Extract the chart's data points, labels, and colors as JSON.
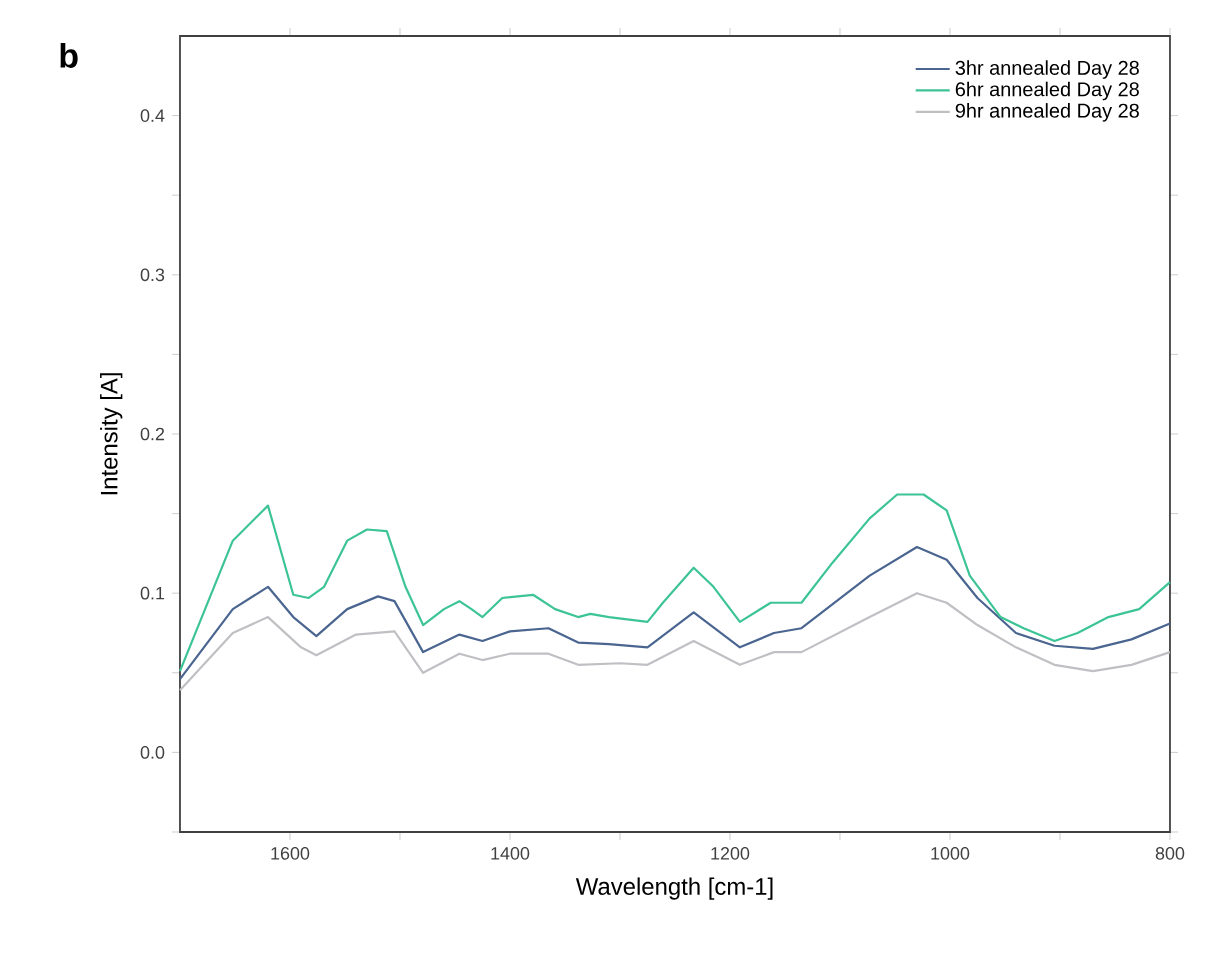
{
  "chart_data": {
    "type": "line",
    "xlabel": "Wavelength [cm-1]",
    "ylabel": "Intensity [A]",
    "annotations": [
      "b"
    ],
    "xlim": [
      1700,
      800
    ],
    "ylim": [
      -0.05,
      0.45
    ],
    "xticks": [
      1600,
      1400,
      1200,
      1000,
      800,
      {
        "value": 1500,
        "label": null
      },
      {
        "value": 1300,
        "label": null
      },
      {
        "value": 1100,
        "label": null
      },
      {
        "value": 900,
        "label": null
      }
    ],
    "yticks": [
      {
        "value": 0,
        "label": "0.0"
      },
      0.1,
      0.2,
      0.3,
      0.4,
      {
        "value": -0.05,
        "label": null
      },
      {
        "value": 0.05,
        "label": null
      },
      {
        "value": 0.15,
        "label": null
      },
      {
        "value": 0.25,
        "label": null
      },
      {
        "value": 0.35,
        "label": null
      }
    ],
    "legend": "top right",
    "grid": false,
    "marker": "none",
    "line_style": "solid",
    "series": [
      {
        "name": "3hr annealed Day 28",
        "color": "#4a6590",
        "x": [
          1700,
          1652,
          1620,
          1597,
          1576,
          1548,
          1520,
          1505,
          1479,
          1446,
          1425,
          1400,
          1365,
          1338,
          1310,
          1275,
          1233,
          1191,
          1160,
          1135,
          1073,
          1030,
          1003,
          975,
          940,
          905,
          870,
          835,
          800
        ],
        "values": [
          0.046,
          0.09,
          0.104,
          0.085,
          0.073,
          0.09,
          0.098,
          0.095,
          0.063,
          0.074,
          0.07,
          0.076,
          0.078,
          0.069,
          0.068,
          0.066,
          0.088,
          0.066,
          0.075,
          0.078,
          0.111,
          0.129,
          0.121,
          0.097,
          0.075,
          0.067,
          0.065,
          0.071,
          0.081
        ]
      },
      {
        "name": "6hr annealed Day 28",
        "color": "#3cc495",
        "x": [
          1700,
          1652,
          1620,
          1597,
          1583,
          1569,
          1548,
          1530,
          1512,
          1495,
          1479,
          1460,
          1446,
          1435,
          1425,
          1407,
          1379,
          1359,
          1338,
          1327,
          1310,
          1275,
          1261,
          1233,
          1215,
          1191,
          1163,
          1135,
          1107,
          1073,
          1048,
          1024,
          1003,
          982,
          954,
          933,
          905,
          884,
          856,
          828,
          800
        ],
        "values": [
          0.051,
          0.133,
          0.155,
          0.099,
          0.097,
          0.104,
          0.133,
          0.14,
          0.139,
          0.104,
          0.08,
          0.09,
          0.095,
          0.09,
          0.085,
          0.097,
          0.099,
          0.09,
          0.085,
          0.087,
          0.085,
          0.082,
          0.094,
          0.116,
          0.104,
          0.082,
          0.094,
          0.094,
          0.119,
          0.147,
          0.162,
          0.162,
          0.152,
          0.111,
          0.085,
          0.078,
          0.07,
          0.075,
          0.085,
          0.09,
          0.107
        ]
      },
      {
        "name": "9hr annealed Day 28",
        "color": "#c0bfc3",
        "x": [
          1700,
          1652,
          1620,
          1590,
          1576,
          1540,
          1505,
          1479,
          1446,
          1425,
          1400,
          1365,
          1338,
          1300,
          1275,
          1233,
          1191,
          1160,
          1135,
          1073,
          1030,
          1003,
          975,
          940,
          905,
          870,
          835,
          800
        ],
        "values": [
          0.039,
          0.075,
          0.085,
          0.066,
          0.061,
          0.074,
          0.076,
          0.05,
          0.062,
          0.058,
          0.062,
          0.062,
          0.055,
          0.056,
          0.055,
          0.07,
          0.055,
          0.063,
          0.063,
          0.085,
          0.1,
          0.094,
          0.08,
          0.066,
          0.055,
          0.051,
          0.055,
          0.063
        ]
      }
    ]
  }
}
